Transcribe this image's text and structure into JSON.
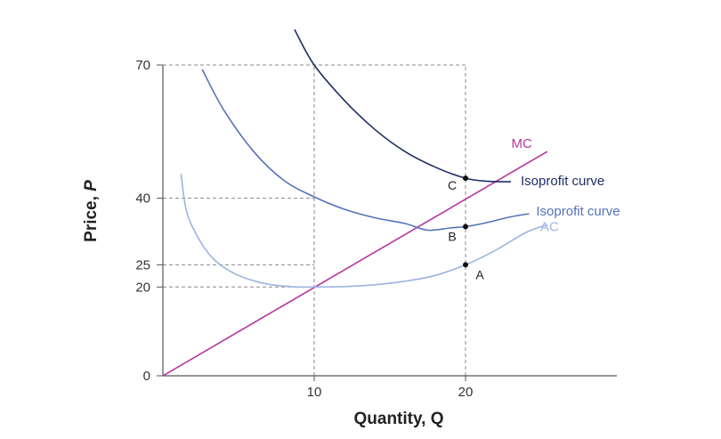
{
  "chart_data": {
    "type": "line",
    "xlabel": "Quantity, Q",
    "ylabel_text": "Price, ",
    "ylabel_var": "P",
    "xlim": [
      0,
      30
    ],
    "ylim": [
      0,
      70
    ],
    "x_ticks": [
      10,
      20
    ],
    "y_ticks": [
      0,
      20,
      25,
      40,
      70
    ],
    "grid": false,
    "colors": {
      "mc": "#b5379f",
      "ac": "#9db3e0",
      "isoprofit_b": "#5573bb",
      "isoprofit_c": "#1f2d66",
      "guide": "#888888",
      "axis": "#555555"
    },
    "series": [
      {
        "key": "mc",
        "name": "MC",
        "points": [
          [
            0,
            0
          ],
          [
            25.4,
            50.5
          ]
        ]
      },
      {
        "key": "ac",
        "name": "AC",
        "points": [
          [
            1.2,
            45.5
          ],
          [
            1.5,
            38
          ],
          [
            2,
            33.2
          ],
          [
            3,
            27.6
          ],
          [
            4,
            24.5
          ],
          [
            5,
            22.6
          ],
          [
            6,
            21.4
          ],
          [
            7,
            20.6
          ],
          [
            8,
            20.2
          ],
          [
            9,
            20
          ],
          [
            10,
            20
          ],
          [
            12,
            20.1
          ],
          [
            14,
            20.5
          ],
          [
            16,
            21.3
          ],
          [
            18,
            22.6
          ],
          [
            20,
            25
          ],
          [
            22,
            28.3
          ],
          [
            24,
            32.3
          ],
          [
            25.4,
            34
          ]
        ]
      },
      {
        "key": "isoprofit_b",
        "name": "Isoprofit curve",
        "points": [
          [
            2.6,
            69
          ],
          [
            4,
            60
          ],
          [
            6,
            50.5
          ],
          [
            8,
            44
          ],
          [
            10,
            40.3
          ],
          [
            12,
            37.5
          ],
          [
            14,
            35.6
          ],
          [
            16,
            34.3
          ],
          [
            17.5,
            32.8
          ],
          [
            19,
            33.3
          ],
          [
            20,
            33.6
          ],
          [
            21,
            34.2
          ],
          [
            23,
            35.8
          ],
          [
            24.2,
            36.5
          ]
        ]
      },
      {
        "key": "isoprofit_c",
        "name": "Isoprofit curve",
        "points": [
          [
            8.7,
            78
          ],
          [
            10,
            70
          ],
          [
            12,
            62
          ],
          [
            14,
            55.5
          ],
          [
            16,
            50.5
          ],
          [
            18,
            47
          ],
          [
            20,
            44.5
          ],
          [
            21.5,
            43.8
          ],
          [
            23,
            43.7
          ]
        ]
      }
    ],
    "guides": [
      {
        "x": 10,
        "y": 70
      },
      {
        "x": 20,
        "y": 70
      },
      {
        "x": 10,
        "y": 40
      },
      {
        "x": 10,
        "y": 25
      },
      {
        "x": 10,
        "y": 20
      }
    ],
    "points": [
      {
        "label": "C",
        "x": 20,
        "y": 44.5
      },
      {
        "label": "B",
        "x": 20,
        "y": 33.6
      },
      {
        "label": "A",
        "x": 20,
        "y": 25
      }
    ]
  }
}
